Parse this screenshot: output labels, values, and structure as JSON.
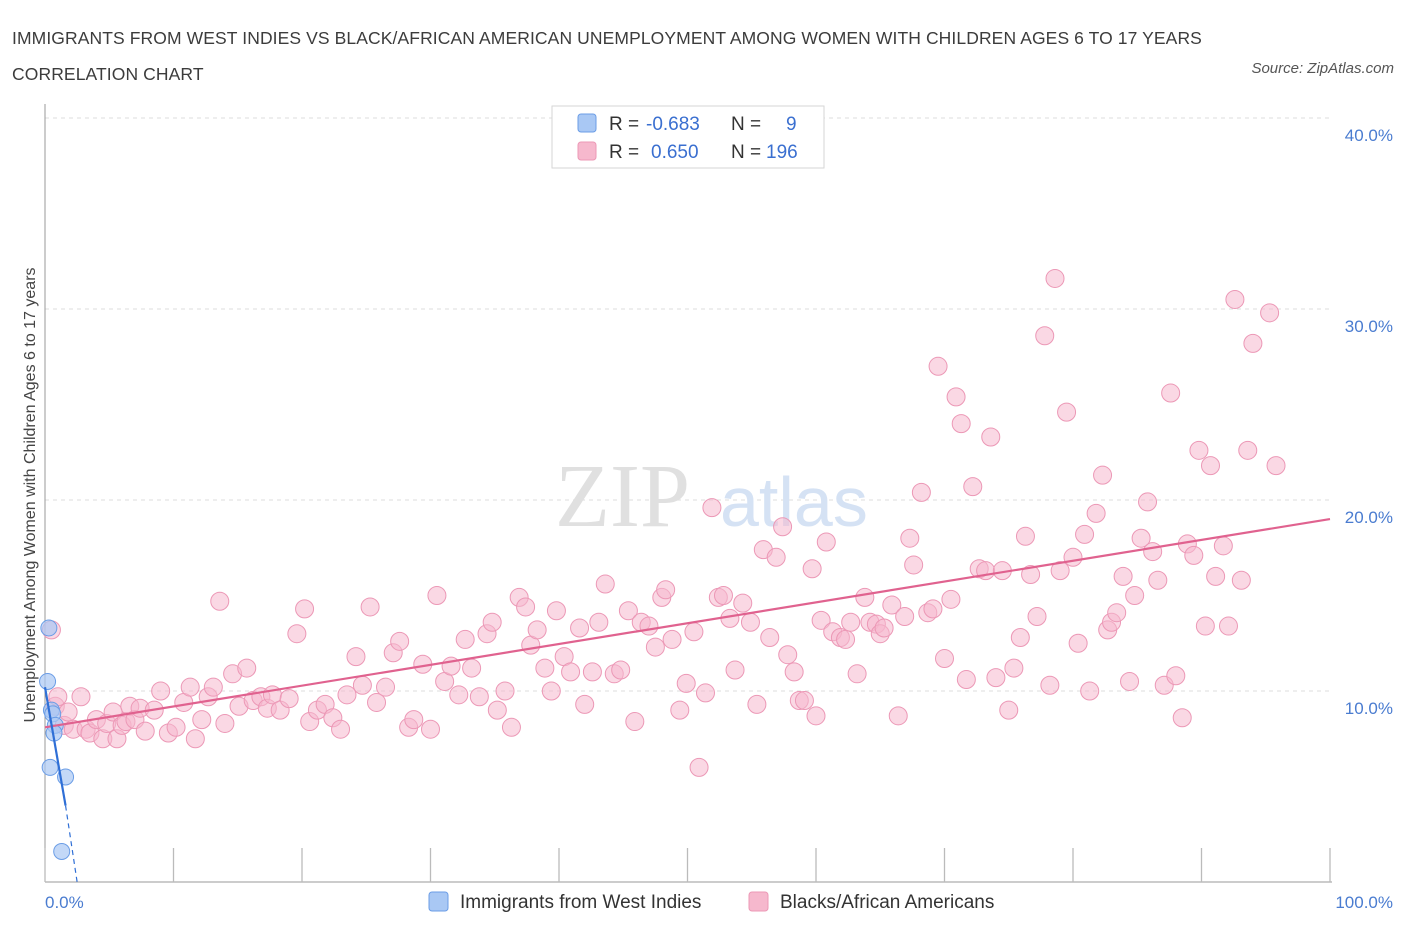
{
  "title": "IMMIGRANTS FROM WEST INDIES VS BLACK/AFRICAN AMERICAN UNEMPLOYMENT AMONG WOMEN WITH CHILDREN AGES 6 TO 17 YEARS CORRELATION CHART",
  "source": "Source: ZipAtlas.com",
  "watermark": {
    "zip": "ZIP",
    "atlas": "atlas"
  },
  "colors": {
    "blue_fill": "#a9c8f4",
    "blue_stroke": "#6b9de6",
    "blue_line": "#2f6fd6",
    "pink_fill": "#f6b8cd",
    "pink_stroke": "#ec98b6",
    "pink_line": "#e0628f",
    "tick_text": "#4a7cd0",
    "grid": "#dddddd"
  },
  "chart_data": {
    "type": "scatter",
    "xlabel": "",
    "ylabel": "Unemployment Among Women with Children Ages 6 to 17 years",
    "xlim": [
      0,
      100
    ],
    "ylim": [
      0,
      40
    ],
    "x_tick_labels": [
      "0.0%",
      "100.0%"
    ],
    "y_ticks": [
      10,
      20,
      30,
      40
    ],
    "y_tick_labels": [
      "10.0%",
      "20.0%",
      "30.0%",
      "40.0%"
    ],
    "grid": true,
    "legend_position": "top-center",
    "stats": [
      {
        "r_label": "R =",
        "r": "-0.683",
        "n_label": "N =",
        "n": "9"
      },
      {
        "r_label": "R =",
        "r": "0.650",
        "n_label": "N =",
        "n": "196"
      }
    ],
    "series": [
      {
        "name": "Immigrants from West Indies",
        "color": "#a9c8f4",
        "trend": {
          "x0": 0,
          "y0": 10.2,
          "x1": 1.6,
          "y1": 4.0,
          "dashed_to_x": 2.5,
          "dashed_to_y": 0
        },
        "points": [
          [
            0.2,
            10.5
          ],
          [
            0.5,
            9.0
          ],
          [
            0.6,
            8.8
          ],
          [
            0.8,
            8.2
          ],
          [
            0.7,
            7.8
          ],
          [
            0.3,
            13.3
          ],
          [
            0.4,
            6.0
          ],
          [
            1.6,
            5.5
          ],
          [
            1.3,
            1.6
          ]
        ]
      },
      {
        "name": "Blacks/African Americans",
        "color": "#f6b8cd",
        "trend": {
          "x0": 0,
          "y0": 8.1,
          "x1": 100,
          "y1": 19.0
        },
        "points": [
          [
            0.5,
            13.2
          ],
          [
            0.8,
            9.2
          ],
          [
            1.0,
            9.7
          ],
          [
            1.5,
            8.2
          ],
          [
            1.8,
            8.9
          ],
          [
            2.2,
            8.0
          ],
          [
            2.8,
            9.7
          ],
          [
            3.2,
            8.0
          ],
          [
            3.5,
            7.8
          ],
          [
            4.0,
            8.5
          ],
          [
            4.5,
            7.5
          ],
          [
            4.8,
            8.3
          ],
          [
            5.3,
            8.9
          ],
          [
            5.6,
            7.5
          ],
          [
            6.0,
            8.2
          ],
          [
            6.3,
            8.4
          ],
          [
            6.6,
            9.2
          ],
          [
            7.0,
            8.5
          ],
          [
            7.4,
            9.1
          ],
          [
            7.8,
            7.9
          ],
          [
            8.5,
            9.0
          ],
          [
            9.0,
            10.0
          ],
          [
            9.6,
            7.8
          ],
          [
            10.2,
            8.1
          ],
          [
            10.8,
            9.4
          ],
          [
            11.3,
            10.2
          ],
          [
            11.7,
            7.5
          ],
          [
            12.2,
            8.5
          ],
          [
            12.7,
            9.7
          ],
          [
            13.1,
            10.2
          ],
          [
            13.6,
            14.7
          ],
          [
            14.0,
            8.3
          ],
          [
            14.6,
            10.9
          ],
          [
            15.1,
            9.2
          ],
          [
            15.7,
            11.2
          ],
          [
            16.2,
            9.5
          ],
          [
            16.8,
            9.7
          ],
          [
            17.3,
            9.1
          ],
          [
            17.7,
            9.8
          ],
          [
            18.3,
            9.0
          ],
          [
            19.0,
            9.6
          ],
          [
            19.6,
            13.0
          ],
          [
            20.2,
            14.3
          ],
          [
            20.6,
            8.4
          ],
          [
            21.2,
            9.0
          ],
          [
            21.8,
            9.3
          ],
          [
            22.4,
            8.6
          ],
          [
            23.0,
            8.0
          ],
          [
            23.5,
            9.8
          ],
          [
            24.2,
            11.8
          ],
          [
            24.7,
            10.3
          ],
          [
            25.3,
            14.4
          ],
          [
            25.8,
            9.4
          ],
          [
            26.5,
            10.2
          ],
          [
            27.1,
            12.0
          ],
          [
            27.6,
            12.6
          ],
          [
            28.3,
            8.1
          ],
          [
            28.7,
            8.5
          ],
          [
            29.4,
            11.4
          ],
          [
            30.0,
            8.0
          ],
          [
            30.5,
            15.0
          ],
          [
            31.1,
            10.5
          ],
          [
            31.6,
            11.3
          ],
          [
            32.2,
            9.8
          ],
          [
            32.7,
            12.7
          ],
          [
            33.2,
            11.2
          ],
          [
            33.8,
            9.7
          ],
          [
            34.4,
            13.0
          ],
          [
            34.8,
            13.6
          ],
          [
            35.2,
            9.0
          ],
          [
            35.8,
            10.0
          ],
          [
            36.3,
            8.1
          ],
          [
            36.9,
            14.9
          ],
          [
            37.4,
            14.4
          ],
          [
            37.8,
            12.4
          ],
          [
            38.3,
            13.2
          ],
          [
            38.9,
            11.2
          ],
          [
            39.4,
            10.0
          ],
          [
            39.8,
            14.2
          ],
          [
            40.4,
            11.8
          ],
          [
            40.9,
            11.0
          ],
          [
            41.6,
            13.3
          ],
          [
            42.0,
            9.3
          ],
          [
            42.6,
            11.0
          ],
          [
            43.1,
            13.6
          ],
          [
            43.6,
            15.6
          ],
          [
            44.3,
            10.9
          ],
          [
            44.8,
            11.1
          ],
          [
            45.4,
            14.2
          ],
          [
            45.9,
            8.4
          ],
          [
            46.4,
            13.6
          ],
          [
            47.0,
            13.4
          ],
          [
            47.5,
            12.3
          ],
          [
            48.0,
            14.9
          ],
          [
            48.3,
            15.3
          ],
          [
            48.8,
            12.7
          ],
          [
            49.4,
            9.0
          ],
          [
            49.9,
            10.4
          ],
          [
            50.5,
            13.1
          ],
          [
            50.9,
            6.0
          ],
          [
            51.4,
            9.9
          ],
          [
            51.9,
            19.6
          ],
          [
            52.4,
            14.9
          ],
          [
            52.8,
            15.0
          ],
          [
            53.3,
            13.8
          ],
          [
            53.7,
            11.1
          ],
          [
            54.3,
            14.6
          ],
          [
            54.9,
            13.6
          ],
          [
            55.4,
            9.3
          ],
          [
            55.9,
            17.4
          ],
          [
            56.4,
            12.8
          ],
          [
            56.9,
            17.0
          ],
          [
            57.4,
            18.6
          ],
          [
            57.8,
            11.9
          ],
          [
            58.3,
            11.0
          ],
          [
            58.7,
            9.5
          ],
          [
            59.1,
            9.5
          ],
          [
            59.7,
            16.4
          ],
          [
            60.0,
            8.7
          ],
          [
            60.4,
            13.7
          ],
          [
            60.8,
            17.8
          ],
          [
            61.3,
            13.1
          ],
          [
            61.9,
            12.8
          ],
          [
            62.3,
            12.7
          ],
          [
            62.7,
            13.6
          ],
          [
            63.2,
            10.9
          ],
          [
            63.8,
            14.9
          ],
          [
            64.2,
            13.6
          ],
          [
            64.7,
            13.5
          ],
          [
            65.0,
            13.0
          ],
          [
            65.3,
            13.3
          ],
          [
            65.9,
            14.5
          ],
          [
            66.4,
            8.7
          ],
          [
            66.9,
            13.9
          ],
          [
            67.3,
            18.0
          ],
          [
            67.6,
            16.6
          ],
          [
            68.2,
            20.4
          ],
          [
            68.7,
            14.1
          ],
          [
            69.1,
            14.3
          ],
          [
            69.5,
            27.0
          ],
          [
            70.0,
            11.7
          ],
          [
            70.5,
            14.8
          ],
          [
            70.9,
            25.4
          ],
          [
            71.3,
            24.0
          ],
          [
            71.7,
            10.6
          ],
          [
            72.2,
            20.7
          ],
          [
            72.7,
            16.4
          ],
          [
            73.2,
            16.3
          ],
          [
            73.6,
            23.3
          ],
          [
            74.0,
            10.7
          ],
          [
            74.5,
            16.3
          ],
          [
            75.0,
            9.0
          ],
          [
            75.4,
            11.2
          ],
          [
            75.9,
            12.8
          ],
          [
            76.3,
            18.1
          ],
          [
            76.7,
            16.1
          ],
          [
            77.2,
            13.9
          ],
          [
            77.8,
            28.6
          ],
          [
            78.2,
            10.3
          ],
          [
            78.6,
            31.6
          ],
          [
            79.0,
            16.3
          ],
          [
            79.5,
            24.6
          ],
          [
            80.0,
            17.0
          ],
          [
            80.4,
            12.5
          ],
          [
            80.9,
            18.2
          ],
          [
            81.3,
            10.0
          ],
          [
            81.8,
            19.3
          ],
          [
            82.3,
            21.3
          ],
          [
            82.7,
            13.2
          ],
          [
            83.0,
            13.6
          ],
          [
            83.4,
            14.1
          ],
          [
            83.9,
            16.0
          ],
          [
            84.4,
            10.5
          ],
          [
            84.8,
            15.0
          ],
          [
            85.3,
            18.0
          ],
          [
            85.8,
            19.9
          ],
          [
            86.2,
            17.3
          ],
          [
            86.6,
            15.8
          ],
          [
            87.1,
            10.3
          ],
          [
            87.6,
            25.6
          ],
          [
            88.0,
            10.8
          ],
          [
            88.5,
            8.6
          ],
          [
            88.9,
            17.7
          ],
          [
            89.4,
            17.1
          ],
          [
            89.8,
            22.6
          ],
          [
            90.3,
            13.4
          ],
          [
            90.7,
            21.8
          ],
          [
            91.1,
            16.0
          ],
          [
            91.7,
            17.6
          ],
          [
            92.1,
            13.4
          ],
          [
            92.6,
            30.5
          ],
          [
            93.1,
            15.8
          ],
          [
            93.6,
            22.6
          ],
          [
            94.0,
            28.2
          ],
          [
            95.3,
            29.8
          ],
          [
            95.8,
            21.8
          ]
        ]
      }
    ]
  },
  "legend_bottom": [
    "Immigrants from West Indies",
    "Blacks/African Americans"
  ]
}
